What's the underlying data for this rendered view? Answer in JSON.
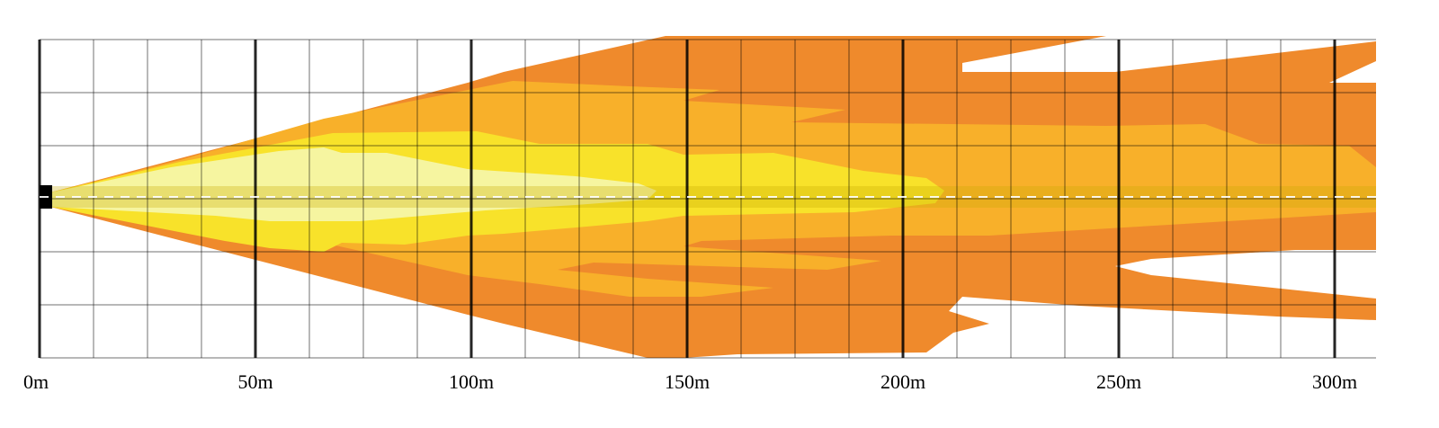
{
  "chart_data": {
    "type": "area",
    "title": "",
    "xlabel": "",
    "ylabel": "",
    "xlim": [
      0,
      313
    ],
    "x_ticks": [
      0,
      50,
      100,
      150,
      200,
      250,
      300
    ],
    "x_tick_labels": [
      "0m",
      "50m",
      "100m",
      "150m",
      "200m",
      "250m",
      "300m"
    ],
    "grid": true,
    "gridlines": {
      "minor_step_m": 12.5,
      "major_step_m": 50
    },
    "centerline": "dashed",
    "zones": [
      {
        "color": "#ef8a2c",
        "reach_m": 313
      },
      {
        "color": "#f8b02a",
        "reach_m": 313
      },
      {
        "color": "#f8e22a",
        "reach_m": 213
      },
      {
        "color": "#f6f5a0",
        "reach_m": 145
      }
    ],
    "center_band_color": "#c8a800"
  }
}
